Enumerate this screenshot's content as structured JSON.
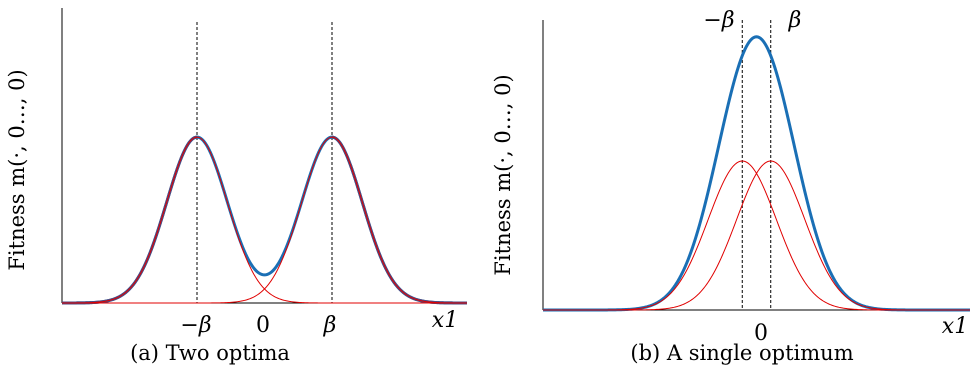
{
  "chart_data": [
    {
      "type": "line",
      "caption": "(a) Two optima",
      "ylabel": "Fitness m(·, 0…, 0)",
      "xlabel": "x1",
      "ticks": [
        "−β",
        "0",
        "β"
      ],
      "beta": 1.0,
      "component_sigma": 0.45,
      "xlim": [
        -3.0,
        3.0
      ],
      "ylim": [
        0,
        1.0
      ],
      "series": [
        {
          "role": "component",
          "color": "#e00000",
          "center": -1.0,
          "peak": 0.57
        },
        {
          "role": "component",
          "color": "#e00000",
          "center": 1.0,
          "peak": 0.57
        },
        {
          "role": "sum",
          "color": "#1a6fb5",
          "overlay_color": "#4e4a80"
        }
      ],
      "guides": [
        "−β",
        "β"
      ]
    },
    {
      "type": "line",
      "caption": "(b) A single optimum",
      "ylabel": "Fitness m(·, 0…, 0)",
      "xlabel": "x1",
      "ticks": [
        "−β",
        "0",
        "β"
      ],
      "beta": 0.2,
      "component_sigma": 0.48,
      "xlim": [
        -3.0,
        3.0
      ],
      "ylim": [
        0,
        1.0
      ],
      "series": [
        {
          "role": "component",
          "color": "#e00000",
          "center": -0.2,
          "peak": 0.5
        },
        {
          "role": "component",
          "color": "#e00000",
          "center": 0.2,
          "peak": 0.5
        },
        {
          "role": "sum",
          "color": "#1a6fb5"
        }
      ],
      "guides": [
        "−β",
        "β"
      ]
    }
  ]
}
